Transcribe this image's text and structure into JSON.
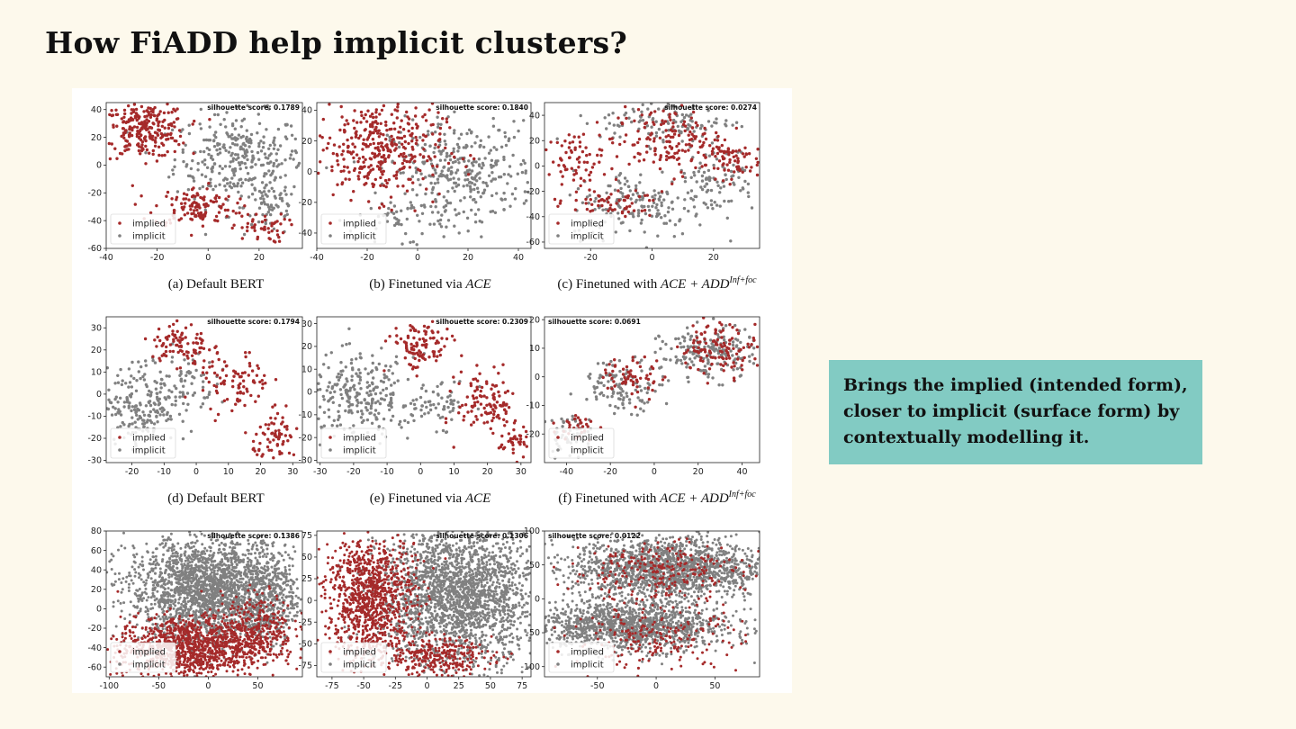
{
  "slide": {
    "title": "How FiADD help implicit clusters?",
    "callout": "Brings the implied (intended form), closer to implicit (surface form) by contextually modelling it."
  },
  "colors": {
    "implied": "#a52a2a",
    "implicit": "#808080",
    "callout_bg": "#82cbc3",
    "background": "#fdf9ec"
  },
  "captions": [
    {
      "prefix": "(a) Default BERT",
      "method": "",
      "sup": ""
    },
    {
      "prefix": "(b) Finetuned via ",
      "method": "ACE",
      "sup": ""
    },
    {
      "prefix": "(c) Finetuned with ",
      "method": "ACE + ADD",
      "sup": "Inf+foc"
    },
    {
      "prefix": "(d) Default BERT",
      "method": "",
      "sup": ""
    },
    {
      "prefix": "(e) Finetuned via ",
      "method": "ACE",
      "sup": ""
    },
    {
      "prefix": "(f) Finetuned with ",
      "method": "ACE + ADD",
      "sup": "Inf+foc"
    }
  ],
  "chart_data": [
    {
      "type": "scatter",
      "silhouette": "silhouette score: 0.1789",
      "xlim": [
        -40,
        37
      ],
      "ylim": [
        -60,
        45
      ],
      "xticks": [
        -40,
        -20,
        0,
        20
      ],
      "yticks": [
        40,
        20,
        0,
        -20,
        -40,
        -60
      ],
      "legend": [
        "implied",
        "implicit"
      ],
      "legend_position": "lower-left",
      "density": 1,
      "clusters": {
        "implied": [
          [
            -25,
            25,
            9,
            11,
            260
          ],
          [
            -5,
            -30,
            9,
            8,
            120
          ],
          [
            20,
            -45,
            6,
            6,
            50
          ]
        ],
        "implicit": [
          [
            12,
            5,
            14,
            18,
            320
          ],
          [
            25,
            -30,
            6,
            12,
            60
          ]
        ]
      }
    },
    {
      "type": "scatter",
      "silhouette": "silhouette score: 0.1840",
      "xlim": [
        -40,
        45
      ],
      "ylim": [
        -50,
        45
      ],
      "xticks": [
        -40,
        -20,
        0,
        20,
        40
      ],
      "yticks": [
        40,
        20,
        0,
        -20,
        -40
      ],
      "legend": [
        "implied",
        "implicit"
      ],
      "legend_position": "lower-left",
      "density": 1,
      "clusters": {
        "implied": [
          [
            -15,
            15,
            14,
            18,
            380
          ]
        ],
        "implicit": [
          [
            18,
            0,
            16,
            18,
            330
          ],
          [
            -5,
            -30,
            12,
            8,
            60
          ]
        ]
      }
    },
    {
      "type": "scatter",
      "silhouette": "silhouette score: 0.0274",
      "xlim": [
        -35,
        35
      ],
      "ylim": [
        -65,
        50
      ],
      "xticks": [
        -20,
        0,
        20
      ],
      "yticks": [
        40,
        20,
        0,
        -20,
        -40,
        -60
      ],
      "legend": [
        "implied",
        "implicit"
      ],
      "legend_position": "lower-left",
      "density": 1,
      "clusters": {
        "implied": [
          [
            -25,
            5,
            5,
            12,
            70
          ],
          [
            5,
            20,
            10,
            15,
            160
          ],
          [
            25,
            5,
            6,
            8,
            70
          ],
          [
            -15,
            -30,
            10,
            6,
            60
          ]
        ],
        "implicit": [
          [
            5,
            35,
            12,
            10,
            120
          ],
          [
            -5,
            -30,
            12,
            15,
            160
          ],
          [
            20,
            -10,
            8,
            15,
            100
          ]
        ]
      }
    },
    {
      "type": "scatter",
      "silhouette": "silhouette score: 0.1794",
      "xlim": [
        -28,
        33
      ],
      "ylim": [
        -31,
        35
      ],
      "xticks": [
        -20,
        -10,
        0,
        10,
        20,
        30
      ],
      "yticks": [
        30,
        20,
        10,
        0,
        -10,
        -20,
        -30
      ],
      "legend": [
        "implied",
        "implicit"
      ],
      "legend_position": "lower-left",
      "density": 1,
      "clusters": {
        "implied": [
          [
            -5,
            22,
            5,
            6,
            90
          ],
          [
            12,
            5,
            6,
            8,
            90
          ],
          [
            25,
            -20,
            4,
            6,
            70
          ]
        ],
        "implicit": [
          [
            -17,
            -5,
            6,
            10,
            180
          ],
          [
            -5,
            5,
            6,
            8,
            80
          ]
        ]
      }
    },
    {
      "type": "scatter",
      "silhouette": "silhouette score: 0.2309",
      "xlim": [
        -31,
        33
      ],
      "ylim": [
        -31,
        33
      ],
      "xticks": [
        -30,
        -20,
        -10,
        0,
        10,
        20,
        30
      ],
      "yticks": [
        30,
        20,
        10,
        0,
        -10,
        -20,
        -30
      ],
      "legend": [
        "implied",
        "implicit"
      ],
      "legend_position": "lower-left",
      "density": 1,
      "clusters": {
        "implied": [
          [
            0,
            20,
            5,
            6,
            110
          ],
          [
            20,
            -5,
            5,
            8,
            110
          ],
          [
            28,
            -22,
            3,
            4,
            40
          ]
        ],
        "implicit": [
          [
            -18,
            -2,
            9,
            10,
            260
          ],
          [
            5,
            -5,
            6,
            6,
            60
          ]
        ]
      }
    },
    {
      "type": "scatter",
      "silhouette": "silhouette score: 0.0691",
      "xlim": [
        -50,
        48
      ],
      "ylim": [
        -30,
        21
      ],
      "xticks": [
        -40,
        -20,
        0,
        20,
        40
      ],
      "yticks": [
        20,
        10,
        0,
        -10,
        -20
      ],
      "legend": [
        "implied",
        "implicit"
      ],
      "legend_position": "lower-left",
      "density": 1,
      "clusters": {
        "implied": [
          [
            30,
            10,
            10,
            5,
            120
          ],
          [
            -10,
            0,
            8,
            4,
            60
          ],
          [
            -35,
            -17,
            5,
            3,
            30
          ]
        ],
        "implicit": [
          [
            25,
            8,
            12,
            5,
            180
          ],
          [
            -15,
            -3,
            10,
            5,
            110
          ],
          [
            -38,
            -20,
            6,
            4,
            50
          ]
        ]
      }
    },
    {
      "type": "scatter",
      "silhouette": "silhouette score: 0.1386",
      "xlim": [
        -103,
        95
      ],
      "ylim": [
        -70,
        80
      ],
      "xticks": [
        -100,
        -50,
        0,
        50
      ],
      "yticks": [
        80,
        60,
        40,
        20,
        0,
        -20,
        -40,
        -60
      ],
      "legend": [
        "implied",
        "implicit"
      ],
      "legend_position": "lower-left",
      "density": 2,
      "clusters": {
        "implied": [
          [
            -20,
            -40,
            40,
            18,
            1100
          ],
          [
            50,
            -20,
            20,
            20,
            300
          ]
        ],
        "implicit": [
          [
            0,
            20,
            45,
            30,
            2200
          ],
          [
            60,
            10,
            15,
            25,
            300
          ]
        ]
      }
    },
    {
      "type": "scatter",
      "silhouette": "silhouette score: 0.1306",
      "xlim": [
        -87,
        82
      ],
      "ylim": [
        -88,
        80
      ],
      "xticks": [
        -75,
        -50,
        -25,
        0,
        25,
        50,
        75
      ],
      "yticks": [
        75,
        50,
        25,
        0,
        -25,
        -50,
        -75
      ],
      "legend": [
        "implied",
        "implicit"
      ],
      "legend_position": "lower-left",
      "density": 2,
      "clusters": {
        "implied": [
          [
            -45,
            5,
            20,
            40,
            1000
          ],
          [
            5,
            -65,
            25,
            12,
            300
          ]
        ],
        "implicit": [
          [
            25,
            5,
            35,
            45,
            2300
          ]
        ]
      }
    },
    {
      "type": "scatter",
      "silhouette": "silhouette score: 0.0122",
      "xlim": [
        -95,
        88
      ],
      "ylim": [
        -115,
        100
      ],
      "xticks": [
        -50,
        0,
        50
      ],
      "yticks": [
        100,
        50,
        0,
        -50,
        -100
      ],
      "legend": [
        "implied",
        "implicit"
      ],
      "legend_position": "lower-left",
      "density": 2,
      "clusters": {
        "implied": [
          [
            0,
            40,
            40,
            25,
            250
          ],
          [
            0,
            -60,
            40,
            25,
            200
          ]
        ],
        "implicit": [
          [
            10,
            45,
            45,
            25,
            1600
          ],
          [
            -20,
            -40,
            45,
            20,
            1300
          ]
        ]
      }
    }
  ]
}
